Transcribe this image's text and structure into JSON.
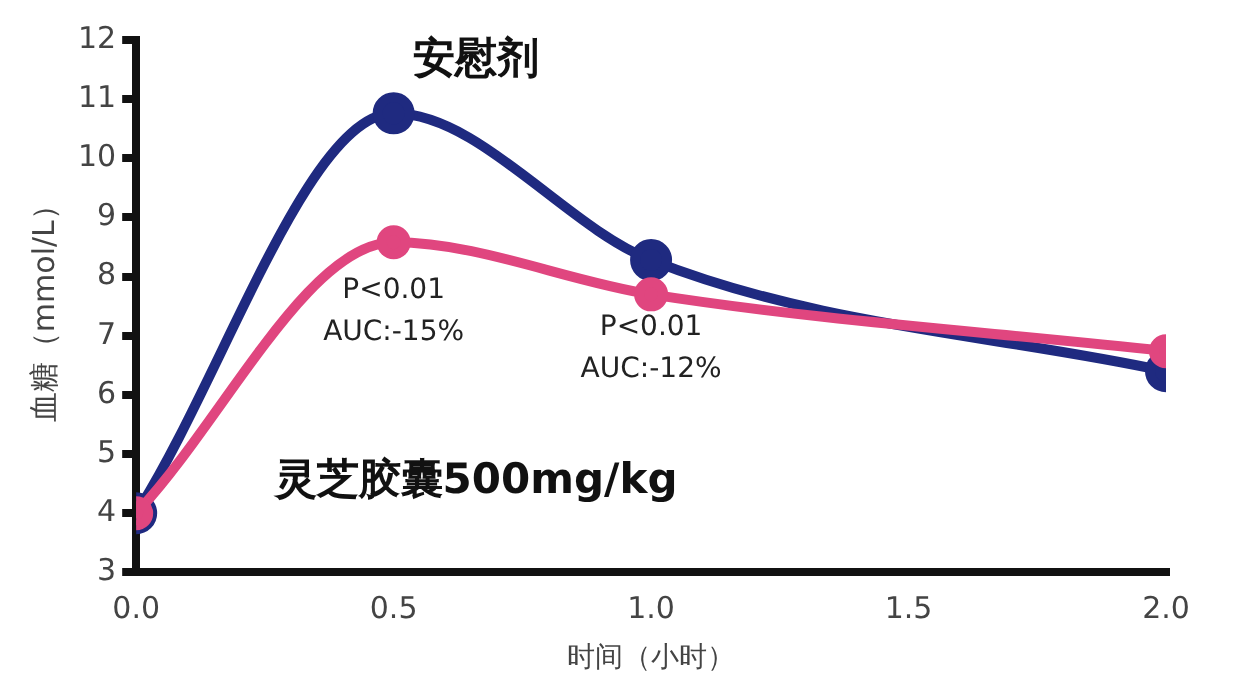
{
  "chart_data": {
    "type": "line",
    "xlabel": "时间（小时）",
    "ylabel": "血糖（mmol/L）",
    "x": [
      0,
      0.5,
      1.0,
      2.0
    ],
    "series": [
      {
        "name": "安慰剂",
        "color": "#1f2a80",
        "values": [
          4.0,
          10.76,
          8.28,
          6.4
        ]
      },
      {
        "name": "灵芝胶囊500mg/kg",
        "color": "#e0467f",
        "values": [
          4.0,
          8.58,
          7.7,
          6.74
        ]
      }
    ],
    "xlim": [
      0,
      2.0
    ],
    "xticks": [
      {
        "value": 0,
        "label": "0.0"
      },
      {
        "value": 0.5,
        "label": "0.5"
      },
      {
        "value": 1.0,
        "label": "1.0"
      },
      {
        "value": 1.5,
        "label": "1.5"
      },
      {
        "value": 2.0,
        "label": "2.0"
      }
    ],
    "ylim": [
      3,
      12
    ],
    "yticks": [
      3,
      4,
      5,
      6,
      7,
      8,
      9,
      10,
      11,
      12
    ],
    "annotations": [
      "P<0.01",
      "AUC:-15%",
      "P<0.01",
      "AUC:-12%"
    ],
    "grid": false,
    "legend": false,
    "marker": "circle",
    "line_style": "solid"
  }
}
